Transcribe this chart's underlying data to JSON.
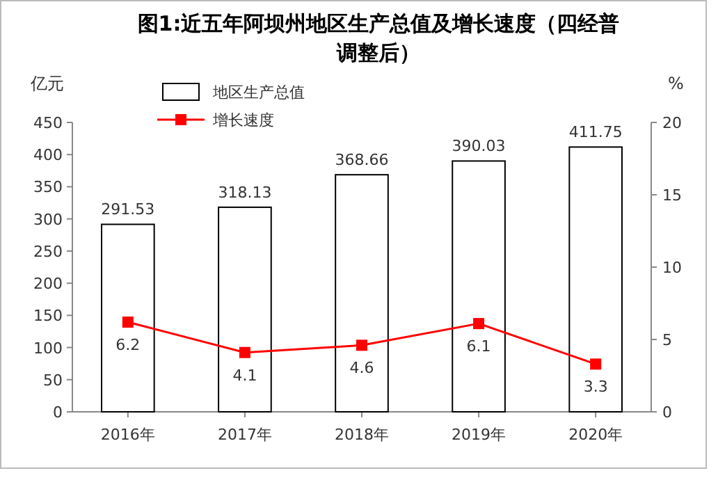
{
  "chart_data": {
    "type": "bar",
    "title": "图1:近五年阿坝州地区生产总值及增长速度（四经普调整后）",
    "ylabel": "亿元",
    "y2label": "%",
    "categories": [
      "2016年",
      "2017年",
      "2018年",
      "2019年",
      "2020年"
    ],
    "series": [
      {
        "name": "地区生产总值",
        "color": "#ffffff",
        "values": [
          291.53,
          318.13,
          368.66,
          390.03,
          411.75
        ]
      },
      {
        "name": "增长速度",
        "type": "line",
        "axis": "y2",
        "color": "#ff0000",
        "marker": "square",
        "values": [
          6.2,
          4.1,
          4.6,
          6.1,
          3.3
        ]
      }
    ],
    "ylim": [
      0,
      450
    ],
    "yticks": [
      0,
      50,
      100,
      150,
      200,
      250,
      300,
      350,
      400,
      450
    ],
    "y2lim": [
      0,
      20
    ],
    "y2ticks": [
      0,
      5,
      10,
      15,
      20
    ],
    "data_labels": true,
    "legend": "top left",
    "grid": false
  }
}
